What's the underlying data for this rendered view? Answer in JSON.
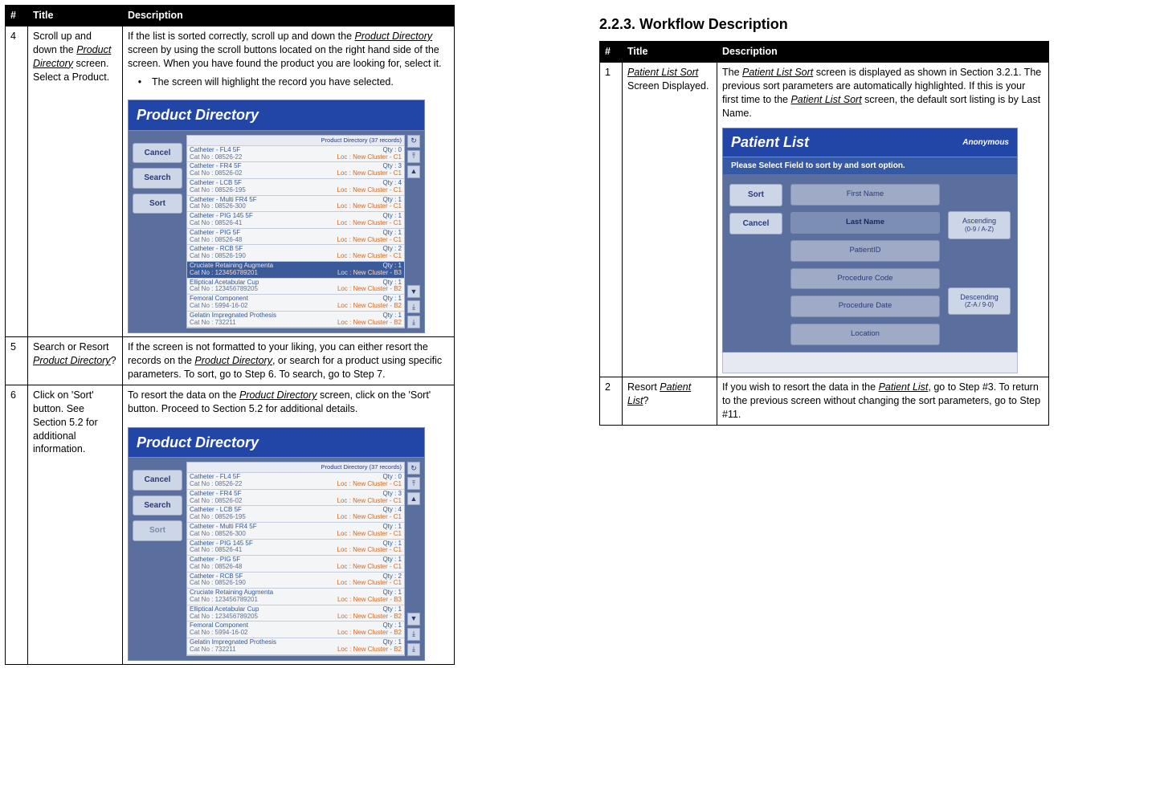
{
  "left_table": {
    "headers": {
      "num": "#",
      "title": "Title",
      "desc": "Description"
    },
    "rows": [
      {
        "num": "4",
        "title_a": "Scroll up and down the ",
        "title_link": "Product Directory",
        "title_b": " screen.  Select a Product.",
        "desc_a": "If the list is sorted correctly, scroll up and down the ",
        "desc_link": "Product Directory",
        "desc_b": " screen by using the scroll buttons located on the right hand side of the screen.  When you have found the product you are looking for, select it.",
        "bullet": "The screen will highlight the record you have selected."
      },
      {
        "num": "5",
        "title_a": "Search or Resort ",
        "title_link": "Product Directory",
        "title_b": "?",
        "desc_a": "If the screen is not formatted to your liking, you can either resort the records on the ",
        "desc_link": "Product Directory",
        "desc_b": ", or search for a product using specific parameters.  To sort, go to Step 6.  To search, go to Step 7."
      },
      {
        "num": "6",
        "title_a": "Click on 'Sort' button.  See Section 5.2 for additional information.",
        "title_link": "",
        "title_b": "",
        "desc_a": "To resort the data on the ",
        "desc_link": "Product Directory",
        "desc_b": " screen, click on the 'Sort' button.  Proceed to Section 5.2 for additional details."
      }
    ]
  },
  "section_heading": "2.2.3.    Workflow Description",
  "right_table": {
    "headers": {
      "num": "#",
      "title": "Title",
      "desc": "Description"
    },
    "rows": [
      {
        "num": "1",
        "title_link": "Patient List Sort",
        "title_b": " Screen Displayed.",
        "desc_a": "The ",
        "desc_link1": "Patient List Sort",
        "desc_b": " screen is displayed as shown in Section 3.2.1.  The previous sort parameters are automatically highlighted.  If this is your first time to the ",
        "desc_link2": "Patient List Sort",
        "desc_c": " screen, the default sort listing is by Last Name."
      },
      {
        "num": "2",
        "title_a": "Resort ",
        "title_link": "Patient List",
        "title_b": "?",
        "desc_a": "If you wish to resort the data in the ",
        "desc_link1": "Patient List",
        "desc_b": ", go to Step #3.  To return to the previous screen without changing the sort parameters, go to Step #11."
      }
    ]
  },
  "product_directory": {
    "title": "Product Directory",
    "count_label": "Product Directory (37 records)",
    "buttons": {
      "cancel": "Cancel",
      "search": "Search",
      "sort": "Sort"
    },
    "items": [
      {
        "name": "Catheter - FL4 5F",
        "qty": "Qty : 0",
        "cat": "Cat No : 08526-22",
        "loc": "Loc : New Cluster - C1",
        "hl": false
      },
      {
        "name": "Catheter - FR4 5F",
        "qty": "Qty : 3",
        "cat": "Cat No : 08526-02",
        "loc": "Loc : New Cluster - C1",
        "hl": false
      },
      {
        "name": "Catheter - LCB 5F",
        "qty": "Qty : 4",
        "cat": "Cat No : 08526-195",
        "loc": "Loc : New Cluster - C1",
        "hl": false
      },
      {
        "name": "Catheter - Multi FR4 5F",
        "qty": "Qty : 1",
        "cat": "Cat No : 08526-300",
        "loc": "Loc : New Cluster - C1",
        "hl": false
      },
      {
        "name": "Catheter - PIG 145 5F",
        "qty": "Qty : 1",
        "cat": "Cat No : 08526-41",
        "loc": "Loc : New Cluster - C1",
        "hl": false
      },
      {
        "name": "Catheter - PIG 5F",
        "qty": "Qty : 1",
        "cat": "Cat No : 08526-48",
        "loc": "Loc : New Cluster - C1",
        "hl": false
      },
      {
        "name": "Catheter - RCB 5F",
        "qty": "Qty : 2",
        "cat": "Cat No : 08526-190",
        "loc": "Loc : New Cluster - C1",
        "hl": false
      },
      {
        "name": "Cruciate Retaining Augmenta",
        "qty": "Qty : 1",
        "cat": "Cat No : 123456789201",
        "loc": "Loc : New Cluster - B3",
        "hl": true
      },
      {
        "name": "Elliptical Acetabular Cup",
        "qty": "Qty : 1",
        "cat": "Cat No : 123456789205",
        "loc": "Loc : New Cluster - B2",
        "hl": false
      },
      {
        "name": "Femoral Component",
        "qty": "Qty : 1",
        "cat": "Cat No : 5994-16-02",
        "loc": "Loc : New Cluster - B2",
        "hl": false
      },
      {
        "name": "Gelatin Impregnated Prothesis",
        "qty": "Qty : 1",
        "cat": "Cat No : 732211",
        "loc": "Loc : New Cluster - B2",
        "hl": false
      }
    ],
    "scroll_icons": {
      "refresh": "↻",
      "top": "⤒",
      "up": "▲",
      "down": "▼",
      "pgdn": "⤓",
      "end": "⤓"
    }
  },
  "patient_list": {
    "title": "Patient List",
    "anon": "Anonymous",
    "sub": "Please Select Field to sort by and sort option.",
    "buttons": {
      "sort": "Sort",
      "cancel": "Cancel"
    },
    "options": [
      "First Name",
      "Last Name",
      "PatientID",
      "Procedure Code",
      "Procedure Date",
      "Location"
    ],
    "selected_index": 1,
    "asc_label": "Ascending",
    "asc_sub": "(0-9 / A-Z)",
    "desc_label": "Descending",
    "desc_sub": "(Z-A / 9-0)"
  }
}
